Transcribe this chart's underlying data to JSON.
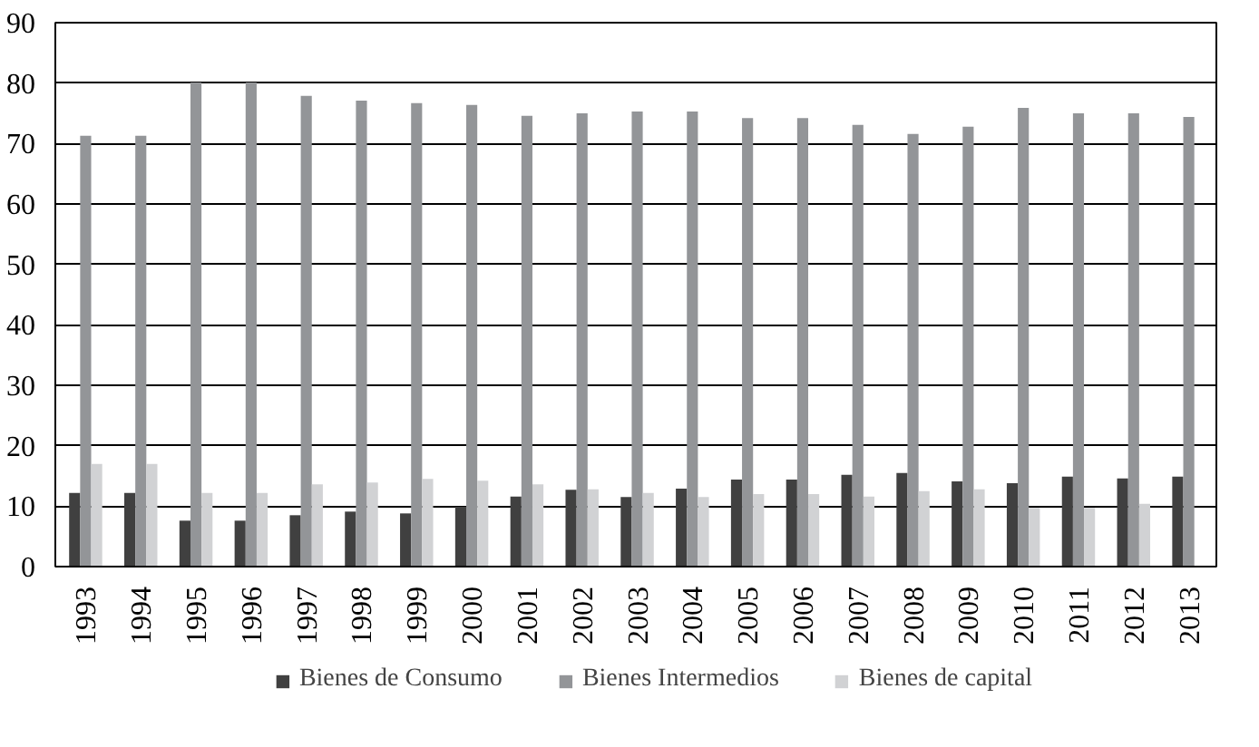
{
  "chart_data": {
    "type": "bar",
    "categories": [
      "1993",
      "1994",
      "1995",
      "1996",
      "1997",
      "1998",
      "1999",
      "2000",
      "2001",
      "2002",
      "2003",
      "2004",
      "2005",
      "2006",
      "2007",
      "2008",
      "2009",
      "2010",
      "2011",
      "2012",
      "2013"
    ],
    "series": [
      {
        "name": "Bienes de Consumo",
        "color": "#404040",
        "values": [
          12.2,
          12.2,
          7.6,
          7.6,
          8.5,
          9.1,
          8.8,
          9.9,
          11.6,
          12.7,
          11.5,
          12.9,
          14.4,
          14.4,
          15.2,
          15.5,
          14.1,
          13.8,
          14.9,
          14.6,
          14.9
        ]
      },
      {
        "name": "Bienes Intermedios",
        "color": "#939598",
        "values": [
          71.3,
          71.3,
          80.1,
          80.1,
          77.9,
          77.1,
          76.7,
          76.4,
          74.6,
          75.0,
          75.3,
          75.3,
          74.2,
          74.2,
          73.1,
          71.6,
          72.8,
          75.9,
          75.0,
          75.0,
          74.4
        ]
      },
      {
        "name": "Bienes de capital",
        "color": "#d1d2d4",
        "values": [
          17.0,
          17.0,
          12.2,
          12.2,
          13.6,
          13.9,
          14.5,
          14.2,
          13.6,
          12.8,
          12.2,
          11.5,
          12.0,
          12.0,
          11.6,
          12.5,
          12.8,
          9.7,
          9.7,
          10.4,
          null
        ]
      }
    ],
    "ylim": [
      0,
      90
    ],
    "yticks": [
      0,
      10,
      20,
      30,
      40,
      50,
      60,
      70,
      80,
      90
    ],
    "grid": "y",
    "legend": "bottom"
  }
}
